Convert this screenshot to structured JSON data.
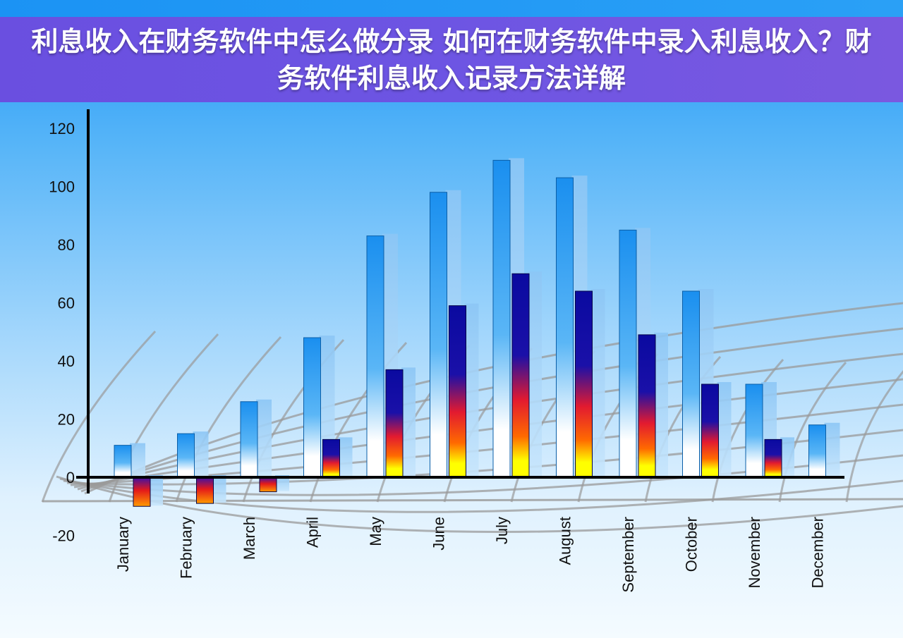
{
  "title": "利息收入在财务软件中怎么做分录 如何在财务软件中录入利息收入？财务软件利息收入记录方法详解",
  "colors": {
    "title_bg": "#6d55e3",
    "title_text": "#ffffff",
    "series_light": "#1e95f0",
    "series_dark": "#0a0aa0",
    "series_hot": "#ff2a00",
    "series_yellow": "#ffff00",
    "axis": "#000000",
    "grid_surface": "#9a9a9a"
  },
  "chart_data": {
    "type": "bar",
    "title": "",
    "xlabel": "",
    "ylabel": "",
    "ylim": [
      -20,
      120
    ],
    "yticks": [
      "120",
      "100",
      "80",
      "60",
      "40",
      "20",
      "0",
      "-20"
    ],
    "ytick_values": [
      120,
      100,
      80,
      60,
      40,
      20,
      0,
      -20
    ],
    "categories": [
      "January",
      "February",
      "March",
      "April",
      "May",
      "June",
      "July",
      "August",
      "September",
      "October",
      "November",
      "December"
    ],
    "series": [
      {
        "values": [
          11,
          15,
          26,
          48,
          83,
          98,
          109,
          103,
          85,
          64,
          32,
          18
        ]
      },
      {
        "values": [
          -10,
          -9,
          -5,
          13,
          37,
          59,
          70,
          64,
          49,
          32,
          13,
          null
        ]
      }
    ],
    "legend": "none",
    "grid": false
  }
}
